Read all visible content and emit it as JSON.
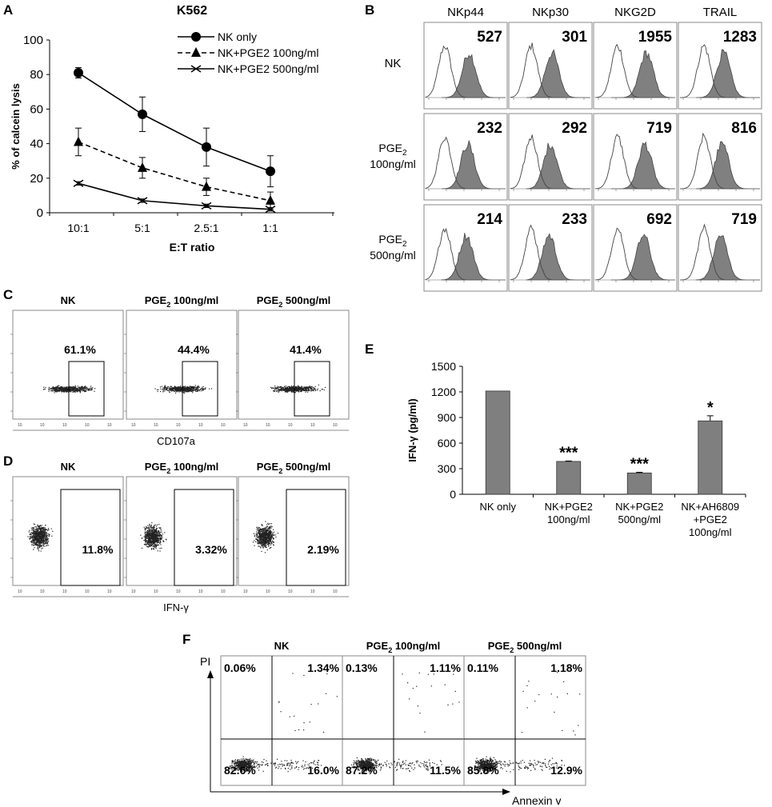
{
  "colors": {
    "ink": "#000000",
    "fill_gray": "#808080",
    "bar_gray": "#7f7f7f",
    "box_gray": "#8a8a8a"
  },
  "subscripts": {
    "pge": "PGE",
    "two": "2"
  },
  "chart_data": [
    {
      "panel": "A",
      "type": "line",
      "title": "K562",
      "xlabel": "E:T ratio",
      "ylabel": "% of calcein lysis",
      "categories": [
        "10:1",
        "5:1",
        "2.5:1",
        "1:1"
      ],
      "ylim": [
        0,
        100
      ],
      "yticks": [
        "0",
        "20",
        "40",
        "60",
        "80",
        "100"
      ],
      "series": [
        {
          "name": "NK only",
          "marker": "circle",
          "dash": "solid",
          "values": [
            81,
            57,
            38,
            24
          ],
          "errors": [
            3,
            10,
            11,
            9
          ]
        },
        {
          "name": "NK+PGE2 100ng/ml",
          "marker": "triangle",
          "dash": "dashed",
          "values": [
            41,
            26,
            15,
            7
          ],
          "errors": [
            8,
            6,
            5,
            5
          ]
        },
        {
          "name": "NK+PGE2 500ng/ml",
          "marker": "x",
          "dash": "solid",
          "values": [
            17,
            7,
            4,
            2
          ],
          "errors": [
            1,
            1,
            1,
            1
          ]
        }
      ]
    },
    {
      "panel": "B",
      "type": "histogram-grid",
      "columns": [
        "NKp44",
        "NKp30",
        "NKG2D",
        "TRAIL"
      ],
      "rows": [
        {
          "label": "NK",
          "values": [
            "527",
            "301",
            "1955",
            "1283"
          ]
        },
        {
          "label": "PGE",
          "sub": "2",
          "label2": "100ng/ml",
          "values": [
            "232",
            "292",
            "719",
            "816"
          ]
        },
        {
          "label": "PGE",
          "sub": "2",
          "label2": "500ng/ml",
          "values": [
            "214",
            "233",
            "692",
            "719"
          ]
        }
      ]
    },
    {
      "panel": "C",
      "type": "scatter-grid",
      "xlabel": "CD107a",
      "plots": [
        {
          "title": "NK",
          "percent": "61.1%"
        },
        {
          "title": " 100ng/ml",
          "percent": "44.4%"
        },
        {
          "title": " 500ng/ml",
          "percent": "41.4%"
        }
      ]
    },
    {
      "panel": "D",
      "type": "scatter-grid",
      "xlabel": "IFN-γ",
      "plots": [
        {
          "title": "NK",
          "percent": "11.8%"
        },
        {
          "title": " 100ng/ml",
          "percent": "3.32%"
        },
        {
          "title": " 500ng/ml",
          "percent": "2.19%"
        }
      ]
    },
    {
      "panel": "E",
      "type": "bar",
      "ylabel": "IFN-γ (pg/ml)",
      "ylim": [
        0,
        1500
      ],
      "yticks": [
        "0",
        "300",
        "600",
        "900",
        "1200",
        "1500"
      ],
      "categories": [
        [
          "NK only"
        ],
        [
          "NK+PGE2",
          "100ng/ml"
        ],
        [
          "NK+PGE2",
          "500ng/ml"
        ],
        [
          "NK+AH6809",
          "+PGE2",
          "100ng/ml"
        ]
      ],
      "values": [
        1210,
        385,
        250,
        860
      ],
      "errors": [
        0,
        5,
        8,
        60
      ],
      "significance": [
        "",
        "***",
        "***",
        "*"
      ]
    },
    {
      "panel": "F",
      "type": "quadrant-scatter-grid",
      "xlabel": "Annexin v",
      "ylabel": "PI",
      "plots": [
        {
          "title": "NK",
          "quadrants": [
            "0.06%",
            "1.34%",
            "82.6%",
            "16.0%"
          ]
        },
        {
          "title": " 100ng/ml",
          "quadrants": [
            "0.13%",
            "1.11%",
            "87.2%",
            "11.5%"
          ]
        },
        {
          "title": " 500ng/ml",
          "quadrants": [
            "0.11%",
            "1.18%",
            "85.8%",
            "12.9%"
          ]
        }
      ]
    }
  ]
}
